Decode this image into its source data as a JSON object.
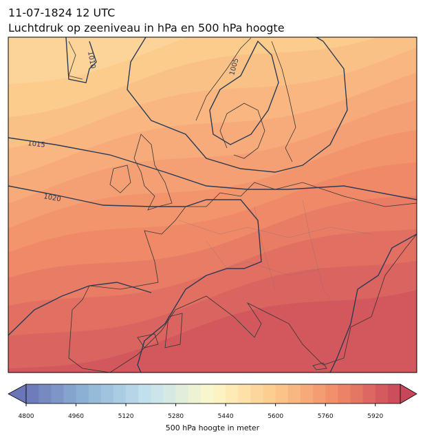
{
  "header": {
    "title": "11-07-1824 12 UTC",
    "subtitle": "Luchtdruk op zeeniveau in hPa en 500 hPa hoogte"
  },
  "map": {
    "isobar_labels": [
      1010,
      1005,
      1015,
      1020
    ]
  },
  "colorbar": {
    "label": "500 hPa hoogte in meter",
    "lim": [
      4800,
      6000
    ],
    "step": 40,
    "ticks": [
      4800,
      4960,
      5120,
      5280,
      5440,
      5600,
      5760,
      5920
    ],
    "colormap": [
      "#6b76b8",
      "#8fb6d6",
      "#c6e3ef",
      "#fdf8c8",
      "#fcc98a",
      "#f08a68",
      "#c9465a"
    ]
  }
}
